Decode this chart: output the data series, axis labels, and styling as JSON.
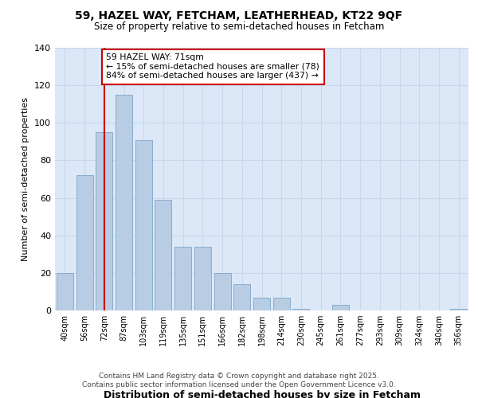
{
  "title1": "59, HAZEL WAY, FETCHAM, LEATHERHEAD, KT22 9QF",
  "title2": "Size of property relative to semi-detached houses in Fetcham",
  "xlabel": "Distribution of semi-detached houses by size in Fetcham",
  "ylabel": "Number of semi-detached properties",
  "bin_labels": [
    "40sqm",
    "56sqm",
    "72sqm",
    "87sqm",
    "103sqm",
    "119sqm",
    "135sqm",
    "151sqm",
    "166sqm",
    "182sqm",
    "198sqm",
    "214sqm",
    "230sqm",
    "245sqm",
    "261sqm",
    "277sqm",
    "293sqm",
    "309sqm",
    "324sqm",
    "340sqm",
    "356sqm"
  ],
  "bar_values": [
    20,
    72,
    95,
    115,
    91,
    59,
    34,
    34,
    20,
    14,
    7,
    7,
    1,
    0,
    3,
    0,
    0,
    0,
    0,
    0,
    1
  ],
  "bar_color": "#b8cce4",
  "bar_edge_color": "#7da6c8",
  "annotation_title": "59 HAZEL WAY: 71sqm",
  "annotation_line1": "← 15% of semi-detached houses are smaller (78)",
  "annotation_line2": "84% of semi-detached houses are larger (437) →",
  "annotation_box_color": "#ffffff",
  "annotation_box_edge": "#cc0000",
  "vline_color": "#cc0000",
  "grid_color": "#c8d8ec",
  "plot_bg_color": "#dce8f8",
  "fig_bg_color": "#ffffff",
  "ylim": [
    0,
    140
  ],
  "yticks": [
    0,
    20,
    40,
    60,
    80,
    100,
    120,
    140
  ],
  "footer1": "Contains HM Land Registry data © Crown copyright and database right 2025.",
  "footer2": "Contains public sector information licensed under the Open Government Licence v3.0."
}
